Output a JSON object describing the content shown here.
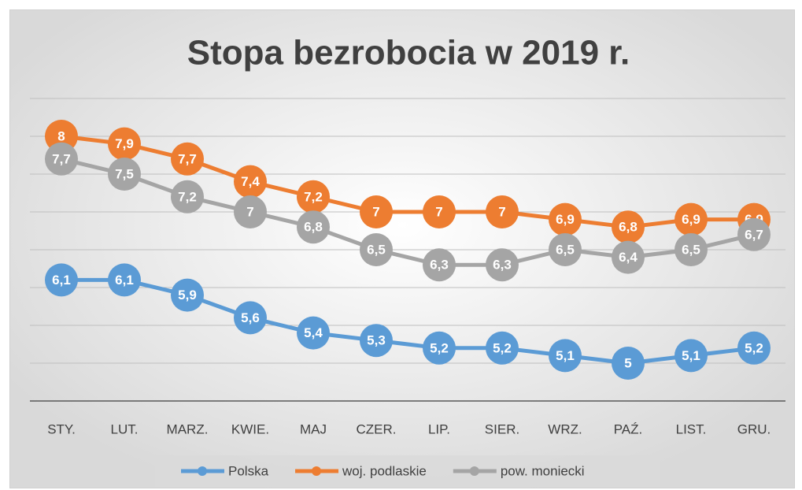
{
  "chart_data": {
    "type": "line",
    "title": "Stopa bezrobocia w 2019 r.",
    "categories": [
      "STY.",
      "LUT.",
      "MARZ.",
      "KWIE.",
      "MAJ",
      "CZER.",
      "LIP.",
      "SIER.",
      "WRZ.",
      "PAŹ.",
      "LIST.",
      "GRU."
    ],
    "series": [
      {
        "name": "Polska",
        "color": "#5b9bd5",
        "values": [
          6.1,
          6.1,
          5.9,
          5.6,
          5.4,
          5.3,
          5.2,
          5.2,
          5.1,
          5,
          5.1,
          5.2
        ],
        "value_labels": [
          "6,1",
          "6,1",
          "5,9",
          "5,6",
          "5,4",
          "5,3",
          "5,2",
          "5,2",
          "5,1",
          "5",
          "5,1",
          "5,2"
        ]
      },
      {
        "name": "woj. podlaskie",
        "color": "#ed7d31",
        "values": [
          8,
          7.9,
          7.7,
          7.4,
          7.2,
          7,
          7,
          7,
          6.9,
          6.8,
          6.9,
          6.9
        ],
        "value_labels": [
          "8",
          "7,9",
          "7,7",
          "7,4",
          "7,2",
          "7",
          "7",
          "7",
          "6,9",
          "6,8",
          "6,9",
          "6,9"
        ]
      },
      {
        "name": "pow. moniecki",
        "color": "#a5a5a5",
        "values": [
          7.7,
          7.5,
          7.2,
          7,
          6.8,
          6.5,
          6.3,
          6.3,
          6.5,
          6.4,
          6.5,
          6.7
        ],
        "value_labels": [
          "7,7",
          "7,5",
          "7,2",
          "7",
          "6,8",
          "6,5",
          "6,3",
          "6,3",
          "6,5",
          "6,4",
          "6,5",
          "6,7"
        ]
      }
    ],
    "ylim": [
      4.5,
      8.5
    ],
    "yticks": [
      4.5,
      5,
      5.5,
      6,
      6.5,
      7,
      7.5,
      8,
      8.5
    ],
    "grid": true,
    "legend": "bottom"
  }
}
